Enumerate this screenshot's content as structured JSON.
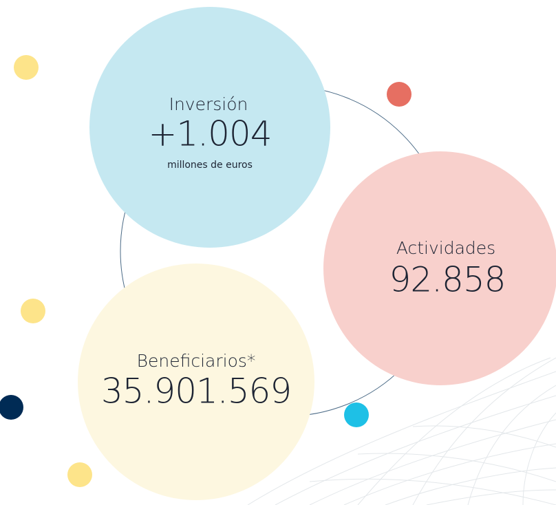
{
  "items": [
    {
      "label": "Inversión",
      "value": "+1.004",
      "unit": "millones de euros"
    },
    {
      "label": "Actividades",
      "value": "92.858"
    },
    {
      "label": "Beneficiarios*",
      "value": "35.901.569"
    }
  ]
}
